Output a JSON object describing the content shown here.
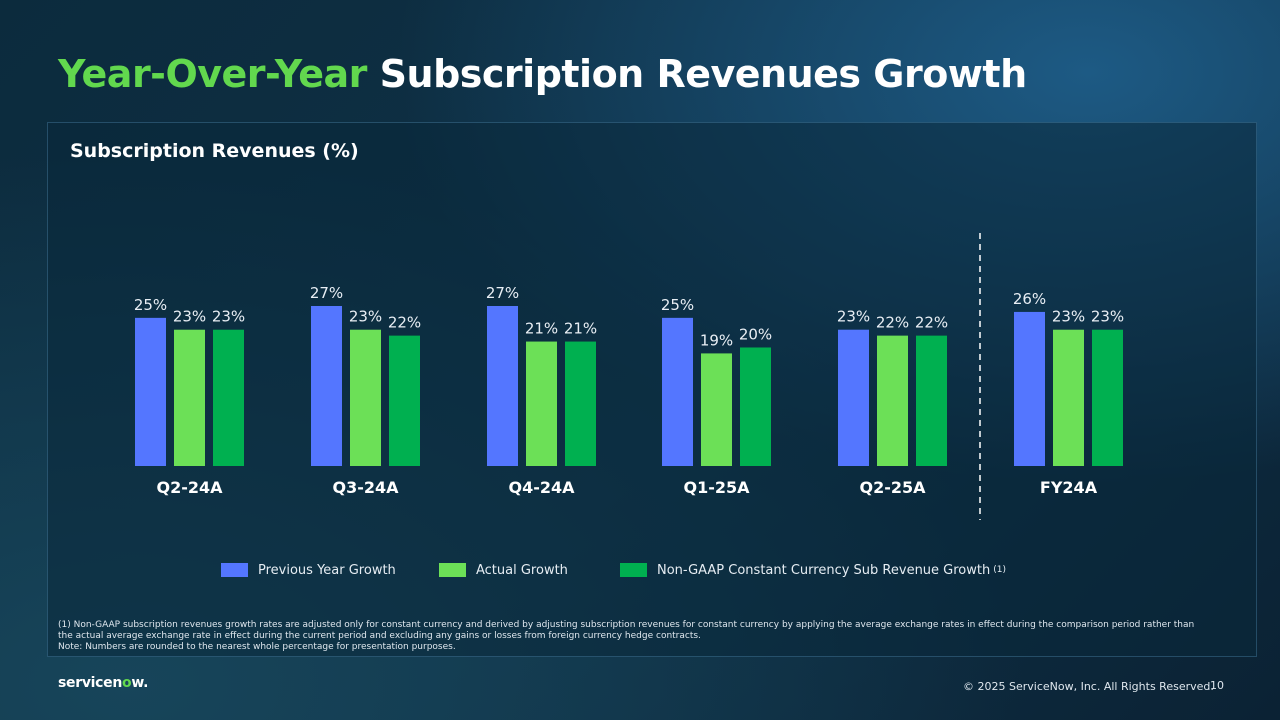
{
  "slide": {
    "title_accent": "Year-Over-Year",
    "title_main": "Subscription Revenues Growth",
    "page_number": "10",
    "copyright": "© 2025 ServiceNow, Inc. All Rights Reserved.",
    "logo": {
      "prefix": "servicen",
      "o": "o",
      "suffix": "w."
    },
    "footnote_1": "(1) Non-GAAP subscription revenues growth rates are adjusted only for constant currency and derived by adjusting subscription revenues for constant currency by applying the average exchange rates in effect during the comparison period rather than the actual average exchange rate in effect during the current period and excluding any gains or losses from foreign currency hedge contracts.",
    "footnote_2": "Note: Numbers are rounded to the nearest whole percentage for presentation purposes."
  },
  "legend_labels": {
    "previous": "Previous Year Growth",
    "actual": "Actual Growth",
    "nongaap": "Non-GAAP Constant Currency Sub Revenue Growth",
    "nongaap_sup": "(1)"
  },
  "colors": {
    "previous": "#5476ff",
    "actual": "#6ce057",
    "nongaap": "#00b050",
    "divider": "#ffffff"
  },
  "chart_data": {
    "type": "bar",
    "title": "Subscription Revenues (%)",
    "categories": [
      "Q2-24A",
      "Q3-24A",
      "Q4-24A",
      "Q1-25A",
      "Q2-25A",
      "FY24A"
    ],
    "series": [
      {
        "name": "Previous Year Growth",
        "values": [
          25,
          27,
          27,
          25,
          23,
          26
        ]
      },
      {
        "name": "Actual Growth",
        "values": [
          23,
          23,
          21,
          19,
          22,
          23
        ]
      },
      {
        "name": "Non-GAAP Constant Currency Sub Revenue Growth",
        "values": [
          23,
          22,
          21,
          20,
          22,
          23
        ]
      }
    ],
    "value_suffix": "%",
    "ylim": [
      0,
      27
    ],
    "xlabel": "",
    "ylabel": "",
    "grid": false,
    "divider_before_category": "FY24A",
    "legend_position": "bottom"
  }
}
